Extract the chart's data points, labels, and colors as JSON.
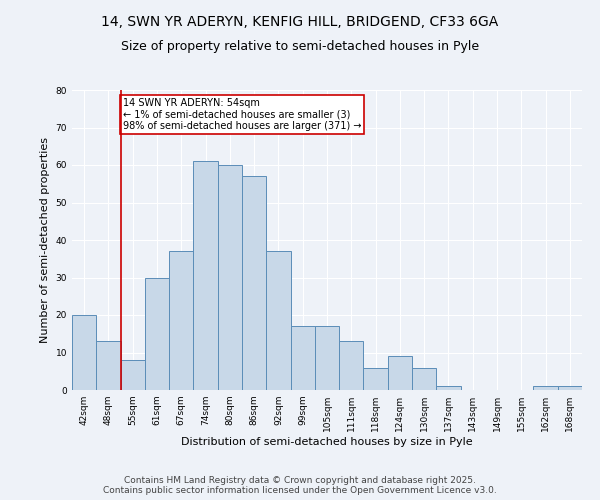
{
  "title_line1": "14, SWN YR ADERYN, KENFIG HILL, BRIDGEND, CF33 6GA",
  "title_line2": "Size of property relative to semi-detached houses in Pyle",
  "xlabel": "Distribution of semi-detached houses by size in Pyle",
  "ylabel": "Number of semi-detached properties",
  "categories": [
    "42sqm",
    "48sqm",
    "55sqm",
    "61sqm",
    "67sqm",
    "74sqm",
    "80sqm",
    "86sqm",
    "92sqm",
    "99sqm",
    "105sqm",
    "111sqm",
    "118sqm",
    "124sqm",
    "130sqm",
    "137sqm",
    "143sqm",
    "149sqm",
    "155sqm",
    "162sqm",
    "168sqm"
  ],
  "bar_heights": [
    20,
    13,
    8,
    30,
    37,
    61,
    60,
    57,
    37,
    17,
    17,
    13,
    6,
    9,
    6,
    1,
    0,
    0,
    0,
    1,
    1
  ],
  "bar_color": "#c8d8e8",
  "bar_edge_color": "#5b8db8",
  "vline_x_index": 1.5,
  "vline_color": "#cc0000",
  "annotation_text": "14 SWN YR ADERYN: 54sqm\n← 1% of semi-detached houses are smaller (3)\n98% of semi-detached houses are larger (371) →",
  "annotation_box_color": "#cc0000",
  "ylim": [
    0,
    80
  ],
  "yticks": [
    0,
    10,
    20,
    30,
    40,
    50,
    60,
    70,
    80
  ],
  "background_color": "#eef2f8",
  "plot_bg_color": "#eef2f8",
  "grid_color": "#ffffff",
  "footer": "Contains HM Land Registry data © Crown copyright and database right 2025.\nContains public sector information licensed under the Open Government Licence v3.0.",
  "title_fontsize": 10,
  "subtitle_fontsize": 9,
  "axis_label_fontsize": 8,
  "tick_fontsize": 6.5,
  "footer_fontsize": 6.5,
  "annotation_fontsize": 7
}
